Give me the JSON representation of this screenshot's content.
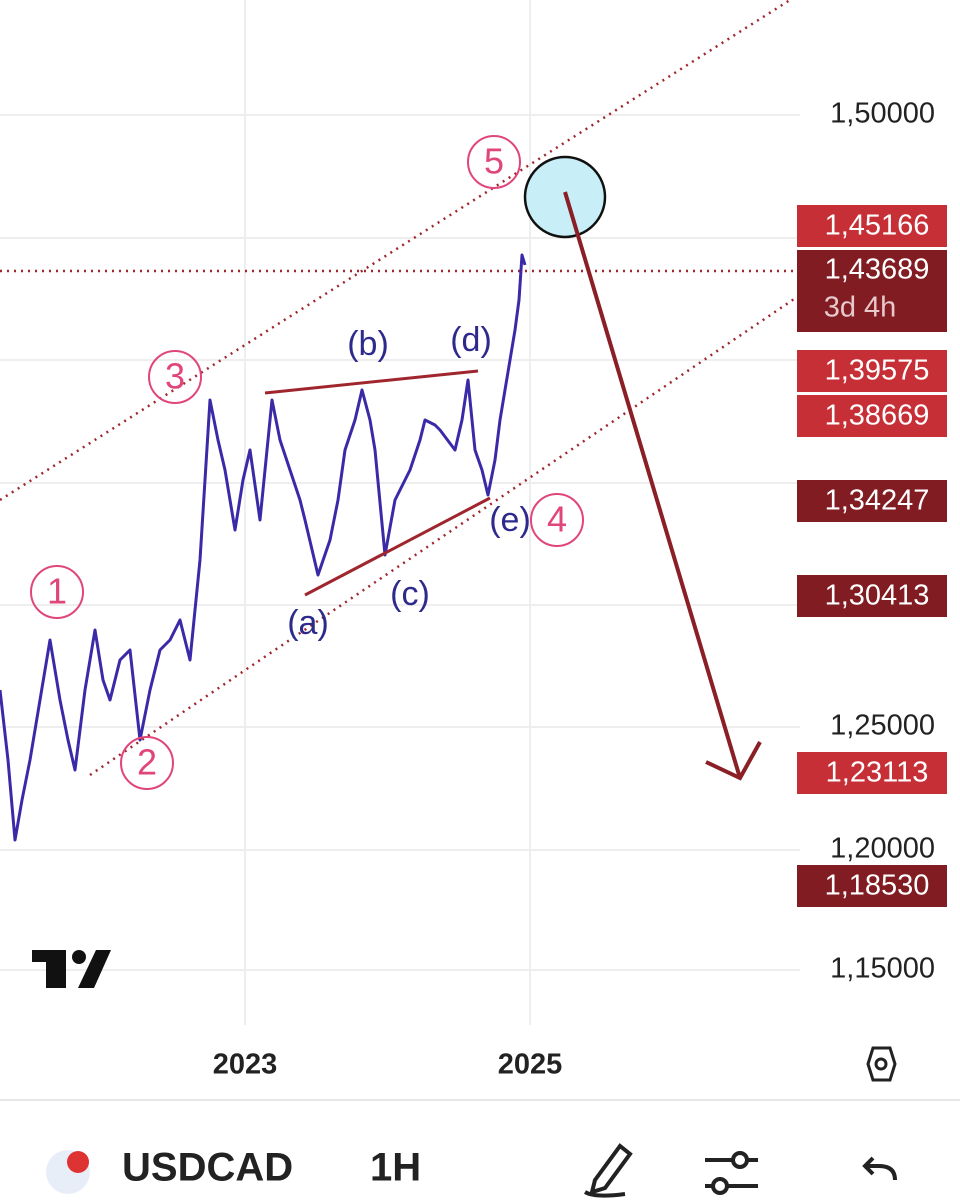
{
  "price_axis": [
    "1,50000",
    "1,25000",
    "1,20000",
    "1,15000"
  ],
  "price_tags": [
    {
      "text": "1,45166"
    },
    {
      "text": "1,43689",
      "sub": "3d 4h"
    },
    {
      "text": "1,39575"
    },
    {
      "text": "1,38669"
    },
    {
      "text": "1,34247"
    },
    {
      "text": "1,30413"
    },
    {
      "text": "1,23113"
    },
    {
      "text": "1,18530"
    }
  ],
  "time_axis": [
    "2023",
    "2025"
  ],
  "waves": [
    "1",
    "2",
    "3",
    "4",
    "5"
  ],
  "subwaves": [
    "(a)",
    "(b)",
    "(c)",
    "(d)",
    "(e)"
  ],
  "toolbar": {
    "symbol": "USDCAD",
    "interval": "1H"
  }
}
